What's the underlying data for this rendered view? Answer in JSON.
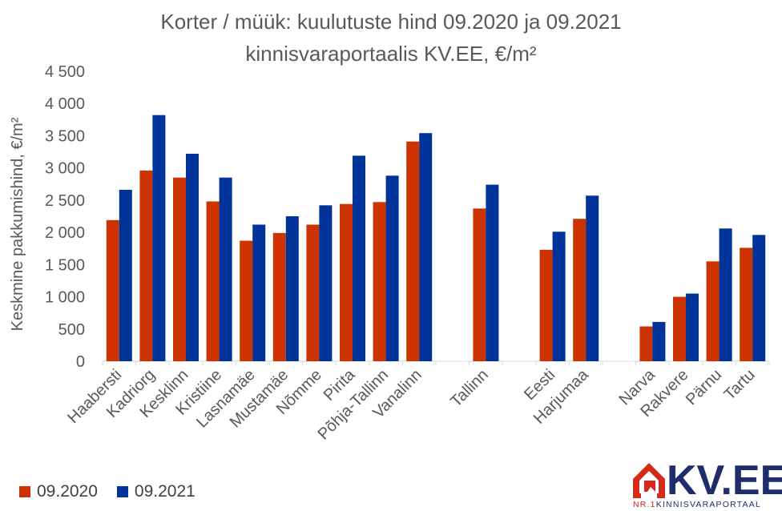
{
  "chart_data": {
    "type": "bar",
    "title": [
      "Korter / müük: kuulutuste hind 09.2020 ja 09.2021",
      "kinnisvaraportaalis KV.EE, €/m²"
    ],
    "ylabel": "Keskmine pakkumishind, €/m²",
    "ylim": [
      0,
      4500
    ],
    "yticks": [
      0,
      500,
      1000,
      1500,
      2000,
      2500,
      3000,
      3500,
      4000,
      4500
    ],
    "ytick_labels": [
      "0",
      "500",
      "1 000",
      "1 500",
      "2 000",
      "2 500",
      "3 000",
      "3 500",
      "4 000",
      "4 500"
    ],
    "grid": false,
    "legend_position": "bottom-left",
    "categories": [
      "Haabersti",
      "Kadriorg",
      "Kesklinn",
      "Kristiine",
      "Lasnamäe",
      "Mustamäe",
      "Nõmme",
      "Pirita",
      "Põhja-Tallinn",
      "Vanalinn",
      "",
      "Tallinn",
      "",
      "Eesti",
      "Harjumaa",
      "",
      "Narva",
      "Rakvere",
      "Pärnu",
      "Tartu"
    ],
    "series": [
      {
        "name": "09.2020",
        "color": "#cc3300",
        "values": [
          2190,
          2960,
          2850,
          2480,
          1870,
          1990,
          2120,
          2440,
          2470,
          3410,
          null,
          2370,
          null,
          1730,
          2210,
          null,
          540,
          1000,
          1550,
          1760
        ]
      },
      {
        "name": "09.2021",
        "color": "#003399",
        "values": [
          2660,
          3820,
          3220,
          2850,
          2120,
          2250,
          2420,
          3190,
          2880,
          3540,
          null,
          2740,
          null,
          2010,
          2570,
          null,
          610,
          1050,
          2060,
          1960
        ]
      }
    ]
  },
  "logo": {
    "main": "KV.EE",
    "sub_prefix": "NR.1",
    "sub_text": "KINNISVARAPORTAAL"
  }
}
